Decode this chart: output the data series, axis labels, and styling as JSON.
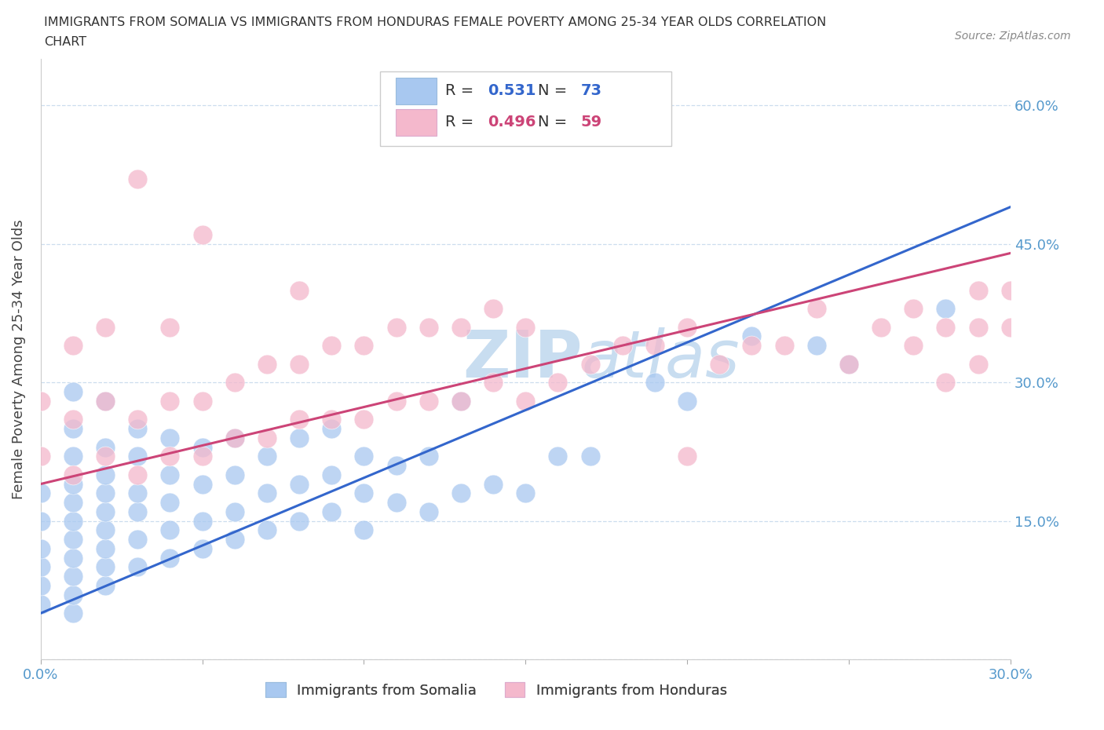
{
  "title_line1": "IMMIGRANTS FROM SOMALIA VS IMMIGRANTS FROM HONDURAS FEMALE POVERTY AMONG 25-34 YEAR OLDS CORRELATION",
  "title_line2": "CHART",
  "source_text": "Source: ZipAtlas.com",
  "ylabel": "Female Poverty Among 25-34 Year Olds",
  "xlim": [
    0.0,
    0.3
  ],
  "ylim": [
    0.0,
    0.65
  ],
  "ytick_vals": [
    0.0,
    0.15,
    0.3,
    0.45,
    0.6
  ],
  "ytick_labels": [
    "",
    "15.0%",
    "30.0%",
    "45.0%",
    "60.0%"
  ],
  "xtick_vals": [
    0.0,
    0.05,
    0.1,
    0.15,
    0.2,
    0.25,
    0.3
  ],
  "xtick_labels": [
    "0.0%",
    "",
    "",
    "",
    "",
    "",
    "30.0%"
  ],
  "somalia_color": "#a8c8f0",
  "honduras_color": "#f4b8cc",
  "somalia_line_color": "#3366cc",
  "honduras_line_color": "#cc4477",
  "tick_label_color": "#5599cc",
  "somalia_R": 0.531,
  "somalia_N": 73,
  "honduras_R": 0.496,
  "honduras_N": 59,
  "watermark_zip": "ZIP",
  "watermark_atlas": "atlas",
  "watermark_color": "#c8ddf0",
  "legend_somalia": "Immigrants from Somalia",
  "legend_honduras": "Immigrants from Honduras",
  "som_line_x0": 0.0,
  "som_line_y0": 0.05,
  "som_line_x1": 0.3,
  "som_line_y1": 0.49,
  "hon_line_x0": 0.0,
  "hon_line_y0": 0.19,
  "hon_line_x1": 0.3,
  "hon_line_y1": 0.44,
  "somalia_x": [
    0.0,
    0.0,
    0.0,
    0.0,
    0.0,
    0.0,
    0.01,
    0.01,
    0.01,
    0.01,
    0.01,
    0.01,
    0.01,
    0.01,
    0.01,
    0.01,
    0.01,
    0.02,
    0.02,
    0.02,
    0.02,
    0.02,
    0.02,
    0.02,
    0.02,
    0.02,
    0.03,
    0.03,
    0.03,
    0.03,
    0.03,
    0.03,
    0.04,
    0.04,
    0.04,
    0.04,
    0.04,
    0.05,
    0.05,
    0.05,
    0.05,
    0.06,
    0.06,
    0.06,
    0.06,
    0.07,
    0.07,
    0.07,
    0.08,
    0.08,
    0.08,
    0.09,
    0.09,
    0.09,
    0.1,
    0.1,
    0.1,
    0.11,
    0.11,
    0.12,
    0.12,
    0.13,
    0.13,
    0.14,
    0.15,
    0.16,
    0.17,
    0.19,
    0.2,
    0.22,
    0.24,
    0.25,
    0.28
  ],
  "somalia_y": [
    0.06,
    0.08,
    0.1,
    0.12,
    0.15,
    0.18,
    0.05,
    0.07,
    0.09,
    0.11,
    0.13,
    0.15,
    0.17,
    0.19,
    0.22,
    0.25,
    0.29,
    0.08,
    0.1,
    0.12,
    0.14,
    0.16,
    0.18,
    0.2,
    0.23,
    0.28,
    0.1,
    0.13,
    0.16,
    0.18,
    0.22,
    0.25,
    0.11,
    0.14,
    0.17,
    0.2,
    0.24,
    0.12,
    0.15,
    0.19,
    0.23,
    0.13,
    0.16,
    0.2,
    0.24,
    0.14,
    0.18,
    0.22,
    0.15,
    0.19,
    0.24,
    0.16,
    0.2,
    0.25,
    0.14,
    0.18,
    0.22,
    0.17,
    0.21,
    0.16,
    0.22,
    0.18,
    0.28,
    0.19,
    0.18,
    0.22,
    0.22,
    0.3,
    0.28,
    0.35,
    0.34,
    0.32,
    0.38
  ],
  "honduras_x": [
    0.0,
    0.0,
    0.01,
    0.01,
    0.01,
    0.02,
    0.02,
    0.02,
    0.03,
    0.03,
    0.03,
    0.04,
    0.04,
    0.04,
    0.05,
    0.05,
    0.05,
    0.06,
    0.06,
    0.07,
    0.07,
    0.08,
    0.08,
    0.08,
    0.09,
    0.09,
    0.1,
    0.1,
    0.11,
    0.11,
    0.12,
    0.12,
    0.13,
    0.13,
    0.14,
    0.14,
    0.15,
    0.15,
    0.16,
    0.17,
    0.18,
    0.19,
    0.2,
    0.2,
    0.21,
    0.22,
    0.23,
    0.24,
    0.25,
    0.26,
    0.27,
    0.27,
    0.28,
    0.28,
    0.29,
    0.29,
    0.29,
    0.3,
    0.3
  ],
  "honduras_y": [
    0.22,
    0.28,
    0.2,
    0.26,
    0.34,
    0.22,
    0.28,
    0.36,
    0.2,
    0.26,
    0.52,
    0.22,
    0.28,
    0.36,
    0.22,
    0.28,
    0.46,
    0.24,
    0.3,
    0.24,
    0.32,
    0.26,
    0.32,
    0.4,
    0.26,
    0.34,
    0.26,
    0.34,
    0.28,
    0.36,
    0.28,
    0.36,
    0.28,
    0.36,
    0.3,
    0.38,
    0.28,
    0.36,
    0.3,
    0.32,
    0.34,
    0.34,
    0.22,
    0.36,
    0.32,
    0.34,
    0.34,
    0.38,
    0.32,
    0.36,
    0.34,
    0.38,
    0.3,
    0.36,
    0.32,
    0.36,
    0.4,
    0.36,
    0.4
  ]
}
